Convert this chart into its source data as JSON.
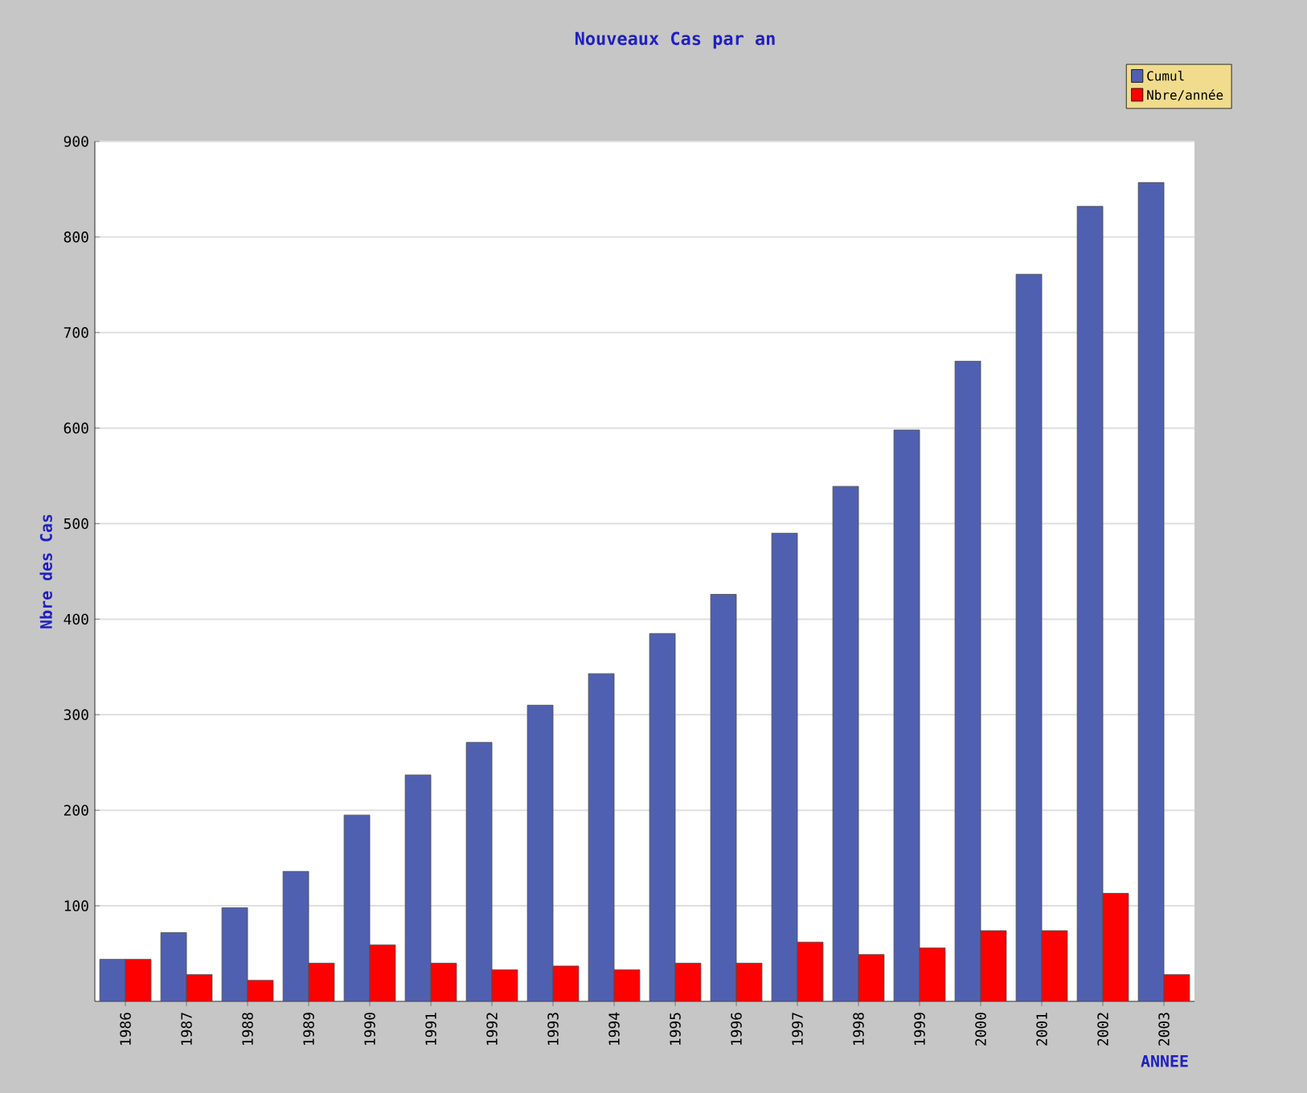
{
  "chart_data": {
    "type": "bar",
    "title": "Nouveaux Cas par an",
    "xlabel": "ANNEE",
    "ylabel": "Nbre des Cas",
    "categories": [
      "1986",
      "1987",
      "1988",
      "1989",
      "1990",
      "1991",
      "1992",
      "1993",
      "1994",
      "1995",
      "1996",
      "1997",
      "1998",
      "1999",
      "2000",
      "2001",
      "2002",
      "2003"
    ],
    "series": [
      {
        "name": "Cumul",
        "color": "#5060b0",
        "values": [
          44,
          72,
          98,
          136,
          195,
          237,
          271,
          310,
          343,
          385,
          426,
          490,
          539,
          598,
          670,
          761,
          832,
          857
        ]
      },
      {
        "name": "Nbre/année",
        "color": "#ff0000",
        "values": [
          44,
          28,
          22,
          40,
          59,
          40,
          33,
          37,
          33,
          40,
          40,
          62,
          49,
          56,
          74,
          74,
          113,
          28
        ]
      }
    ],
    "ylim": [
      0,
      900
    ],
    "yticks": [
      100,
      200,
      300,
      400,
      500,
      600,
      700,
      800,
      900
    ],
    "grid": "y",
    "legend": "top right"
  }
}
